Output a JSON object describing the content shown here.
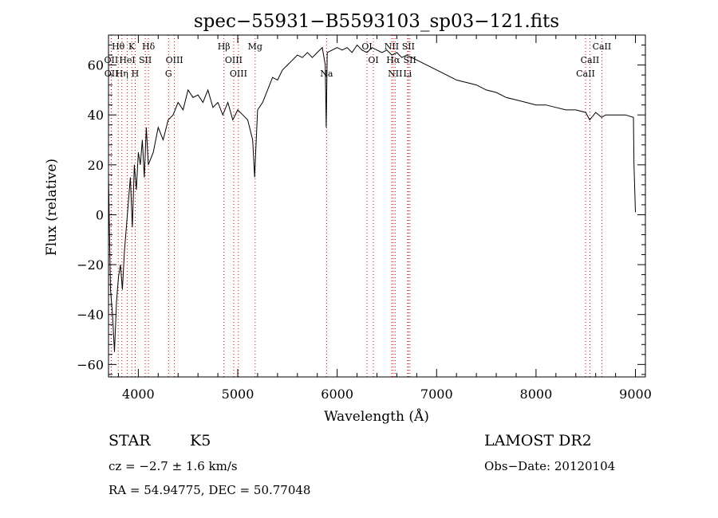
{
  "chart_data": {
    "type": "line",
    "title": "spec−55931−B5593103_sp03−121.fits",
    "xlabel": "Wavelength (Å)",
    "ylabel": "Flux (relative)",
    "xlim": [
      3700,
      9100
    ],
    "ylim": [
      -65,
      72
    ],
    "x_ticks": [
      4000,
      5000,
      6000,
      7000,
      8000,
      9000
    ],
    "y_ticks": [
      -60,
      -40,
      -20,
      0,
      20,
      40,
      60
    ],
    "x_tick_labels": [
      "4000",
      "5000",
      "6000",
      "7000",
      "8000",
      "9000"
    ],
    "y_tick_labels": [
      "−60",
      "−40",
      "−20",
      "0",
      "20",
      "40",
      "60"
    ],
    "series": [
      {
        "color": "#000000",
        "x": [
          3700,
          3720,
          3740,
          3760,
          3780,
          3800,
          3820,
          3840,
          3860,
          3880,
          3900,
          3920,
          3940,
          3960,
          3980,
          4000,
          4020,
          4040,
          4060,
          4080,
          4100,
          4150,
          4200,
          4250,
          4300,
          4350,
          4400,
          4450,
          4500,
          4550,
          4600,
          4650,
          4700,
          4750,
          4800,
          4850,
          4900,
          4950,
          5000,
          5050,
          5100,
          5150,
          5170,
          5180,
          5200,
          5250,
          5300,
          5350,
          5400,
          5450,
          5500,
          5550,
          5600,
          5650,
          5700,
          5750,
          5800,
          5850,
          5880,
          5890,
          5900,
          5950,
          6000,
          6050,
          6100,
          6150,
          6200,
          6250,
          6300,
          6350,
          6400,
          6450,
          6500,
          6550,
          6600,
          6650,
          6700,
          6750,
          6800,
          6850,
          6900,
          6950,
          7000,
          7100,
          7200,
          7300,
          7400,
          7500,
          7600,
          7700,
          7800,
          7900,
          8000,
          8100,
          8200,
          8300,
          8400,
          8500,
          8540,
          8600,
          8660,
          8700,
          8800,
          8900,
          8980,
          8985,
          9000
        ],
        "y": [
          15,
          -30,
          -40,
          -55,
          -35,
          -25,
          -20,
          -30,
          -15,
          -5,
          5,
          15,
          -5,
          20,
          10,
          25,
          20,
          30,
          15,
          35,
          20,
          25,
          35,
          30,
          38,
          40,
          45,
          42,
          50,
          47,
          48,
          45,
          50,
          43,
          45,
          40,
          45,
          38,
          42,
          40,
          38,
          30,
          15,
          25,
          42,
          45,
          50,
          55,
          54,
          58,
          60,
          62,
          64,
          63,
          65,
          63,
          65,
          67,
          60,
          35,
          65,
          66,
          67,
          66,
          67,
          65,
          68,
          66,
          65,
          67,
          66,
          65,
          66,
          64,
          65,
          63,
          64,
          63,
          62,
          61,
          60,
          59,
          58,
          56,
          54,
          53,
          52,
          50,
          49,
          47,
          46,
          45,
          44,
          44,
          43,
          42,
          42,
          41,
          38,
          41,
          39,
          40,
          40,
          40,
          39,
          20,
          1
        ]
      }
    ],
    "line_markers": [
      {
        "label": "Hθ",
        "x": 3798,
        "row": 1
      },
      {
        "label": "OII",
        "x": 3727,
        "row": 2
      },
      {
        "label": "OII",
        "x": 3729,
        "row": 3
      },
      {
        "label": "K",
        "x": 3934,
        "row": 1
      },
      {
        "label": "HeI",
        "x": 3889,
        "row": 2
      },
      {
        "label": "Hη",
        "x": 3835,
        "row": 3
      },
      {
        "label": "Hδ",
        "x": 4102,
        "row": 1
      },
      {
        "label": "SII",
        "x": 4070,
        "row": 2
      },
      {
        "label": "H",
        "x": 3968,
        "row": 3
      },
      {
        "label": "OIII",
        "x": 4363,
        "row": 2
      },
      {
        "label": "G",
        "x": 4304,
        "row": 3
      },
      {
        "label": "Hβ",
        "x": 4861,
        "row": 1
      },
      {
        "label": "OIII",
        "x": 4959,
        "row": 2
      },
      {
        "label": "OIII",
        "x": 5007,
        "row": 3
      },
      {
        "label": "Mg",
        "x": 5175,
        "row": 1
      },
      {
        "label": "Na",
        "x": 5893,
        "row": 3
      },
      {
        "label": "OI",
        "x": 6300,
        "row": 1
      },
      {
        "label": "OI",
        "x": 6364,
        "row": 2
      },
      {
        "label": "NII",
        "x": 6548,
        "row": 1
      },
      {
        "label": "Hα",
        "x": 6563,
        "row": 2
      },
      {
        "label": "NII",
        "x": 6583,
        "row": 3
      },
      {
        "label": "SII",
        "x": 6716,
        "row": 1
      },
      {
        "label": "SII",
        "x": 6731,
        "row": 2
      },
      {
        "label": "Li",
        "x": 6708,
        "row": 3
      },
      {
        "label": "CaII",
        "x": 8662,
        "row": 1
      },
      {
        "label": "CaII",
        "x": 8542,
        "row": 2
      },
      {
        "label": "CaII",
        "x": 8498,
        "row": 3
      }
    ]
  },
  "info": {
    "object_class": "STAR",
    "subclass": "K5",
    "survey": "LAMOST DR2",
    "cz": "cz = −2.7 ± 1.6 km/s",
    "obs_date": "Obs−Date: 20120104",
    "coords": "RA =  54.94775, DEC =  50.77048"
  },
  "colors": {
    "spectrum": "#000000",
    "marker_lines": "#d00000",
    "axes": "#000000",
    "background": "#ffffff"
  }
}
